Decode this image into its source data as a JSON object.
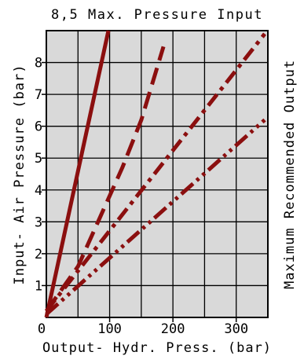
{
  "chart_data": {
    "type": "line",
    "title": "8,5 Max. Pressure Input",
    "xlabel": "Output- Hydr. Press. (bar)",
    "ylabel": "Input- Air Pressure (bar)",
    "right_label": "Maximum Recommended Output",
    "xlim": [
      0,
      350
    ],
    "ylim": [
      0,
      9
    ],
    "x_ticks": [
      0,
      100,
      200,
      300
    ],
    "x_tick_labels": [
      "0",
      "100",
      "200",
      "300"
    ],
    "y_ticks": [
      1,
      2,
      3,
      4,
      5,
      6,
      7,
      8
    ],
    "y_tick_labels": [
      "1",
      "2",
      "3",
      "4",
      "5",
      "6",
      "7",
      "8"
    ],
    "grid": true,
    "plot_background": "#d9d9d9",
    "series_color": "#8b0f0f",
    "series": [
      {
        "style": "solid",
        "points": [
          [
            0,
            0
          ],
          [
            98,
            9
          ]
        ]
      },
      {
        "style": "dash",
        "points": [
          [
            0,
            0.2
          ],
          [
            50,
            1.6
          ],
          [
            120,
            4.7
          ],
          [
            150,
            6.2
          ],
          [
            185,
            8.5
          ]
        ]
      },
      {
        "style": "dash-dot",
        "points": [
          [
            0,
            0.2
          ],
          [
            345,
            8.9
          ]
        ]
      },
      {
        "style": "dash-dot-dot",
        "points": [
          [
            0,
            0.1
          ],
          [
            345,
            6.2
          ]
        ]
      }
    ]
  }
}
